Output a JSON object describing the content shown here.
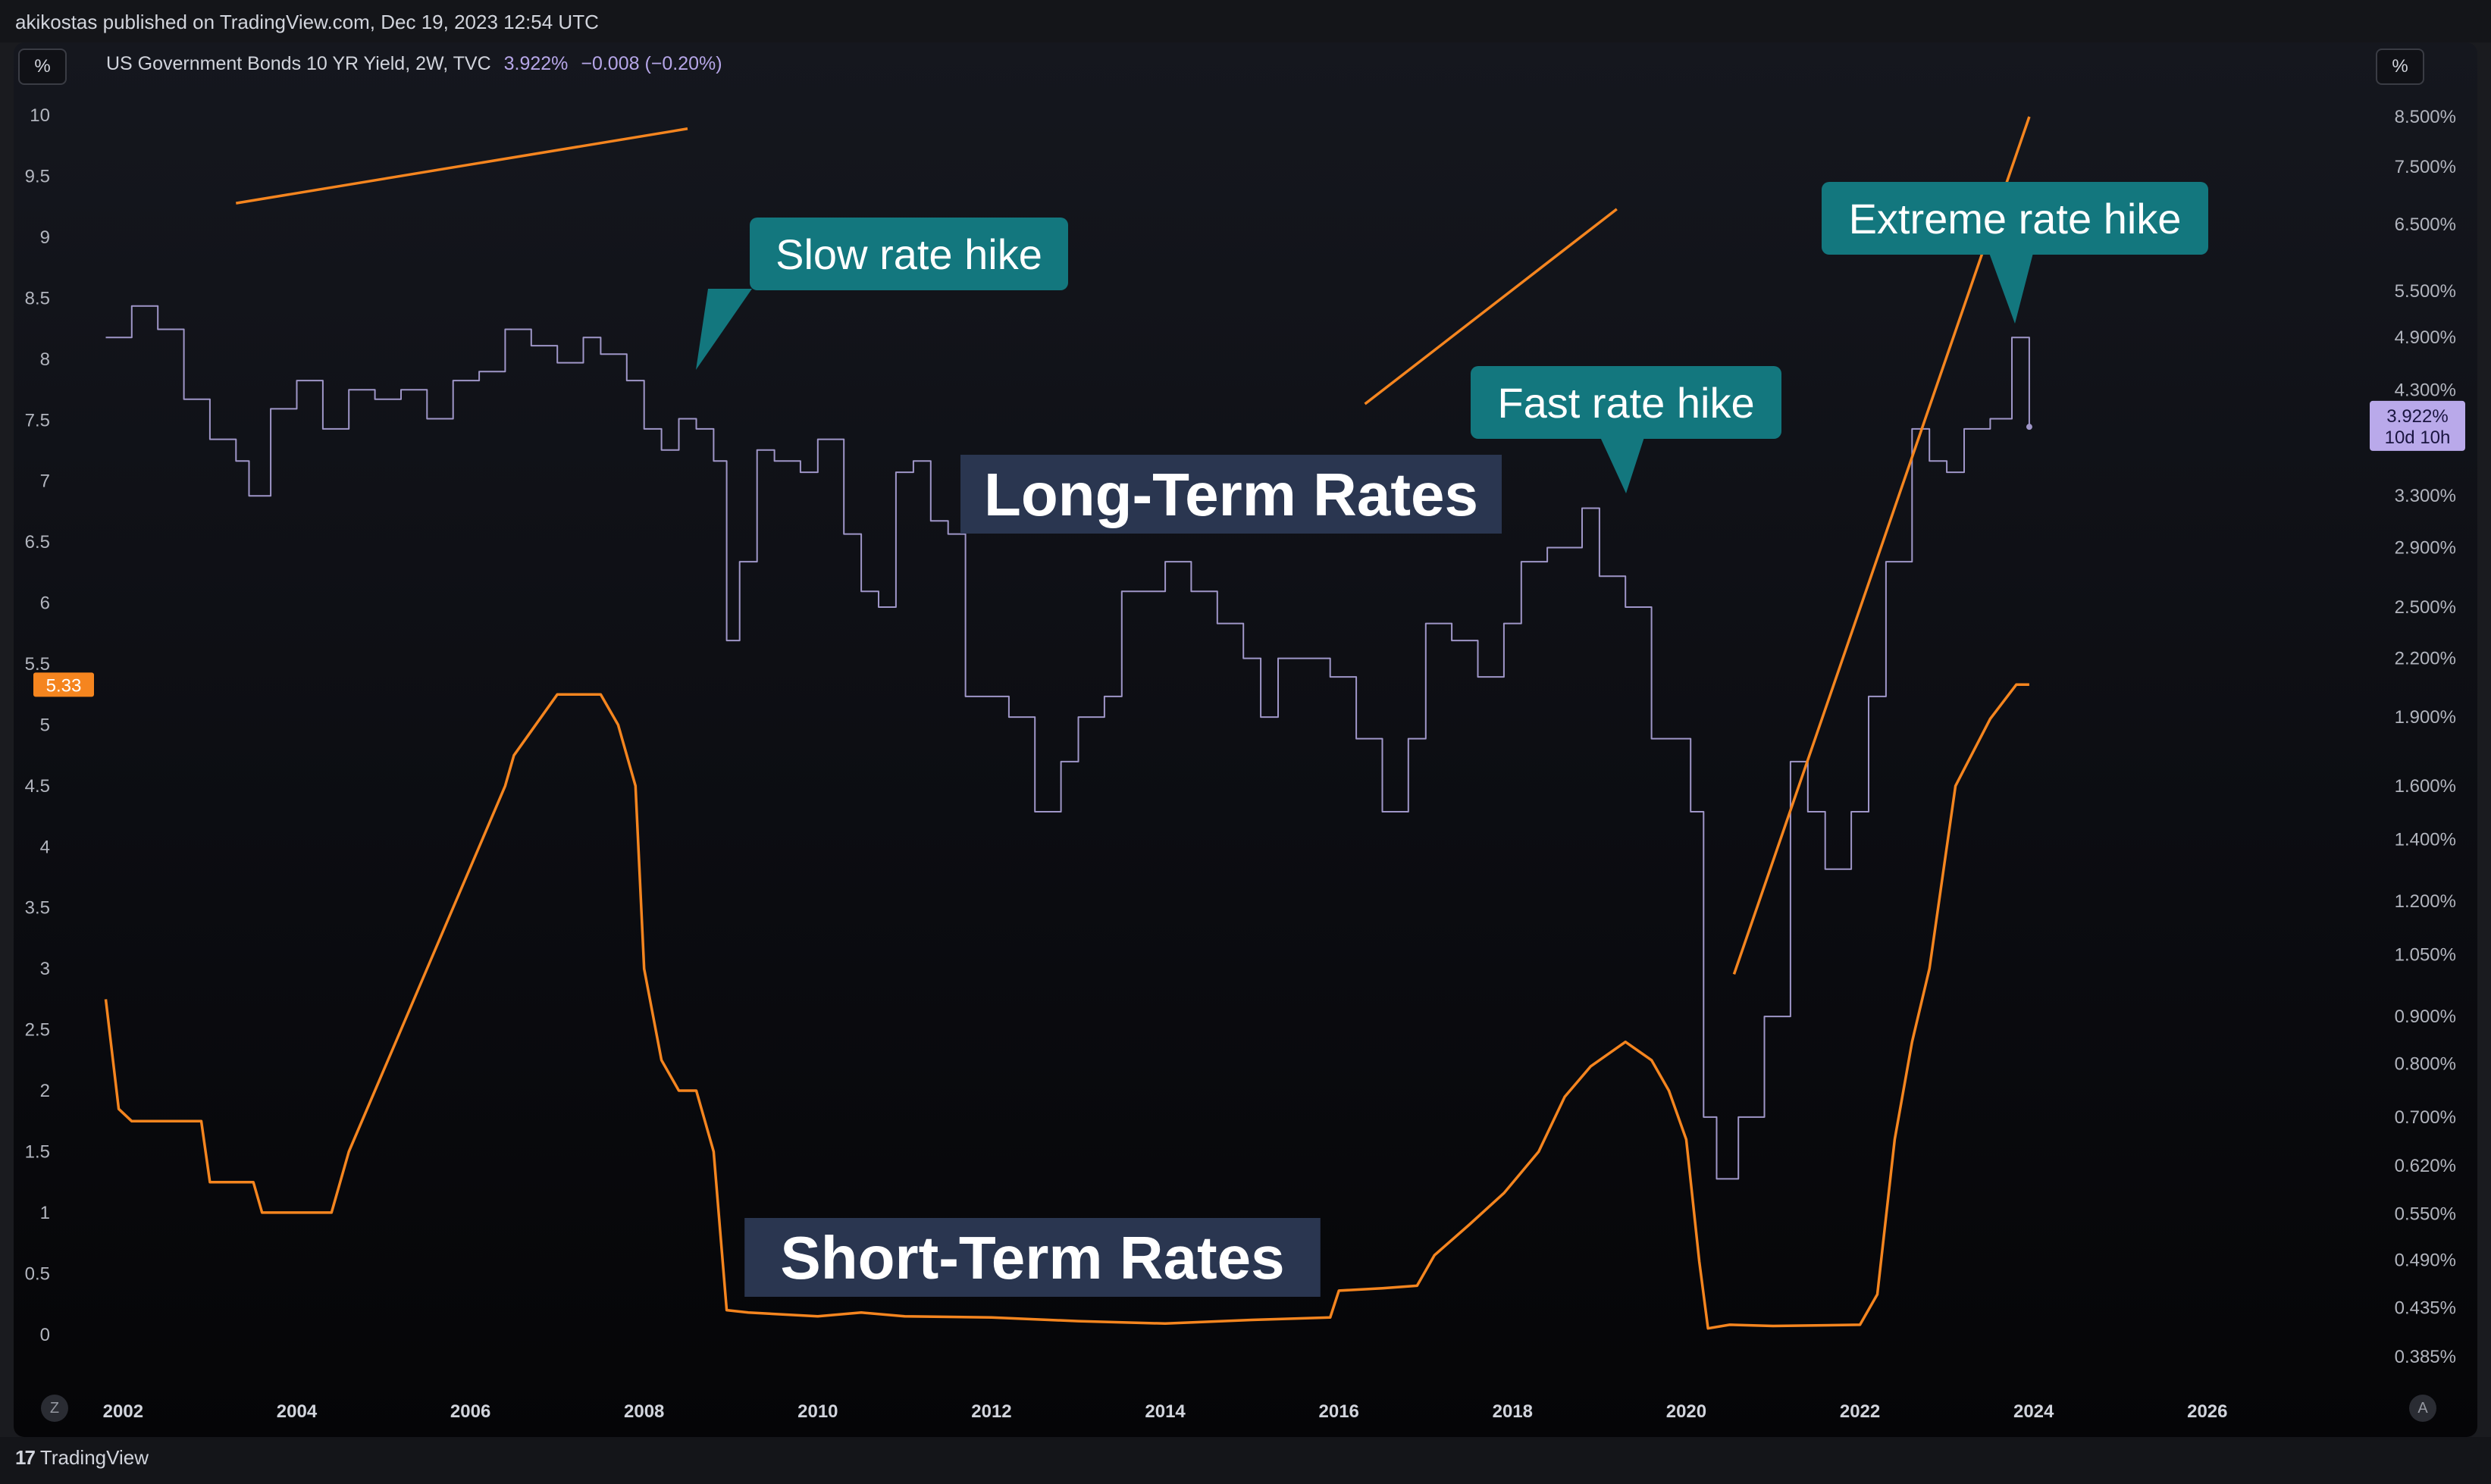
{
  "header": {
    "byline": "akikostas published on TradingView.com, Dec 19, 2023 12:54 UTC"
  },
  "legend": {
    "unit": "%",
    "symbol": "US Government Bonds 10 YR Yield, 2W, TVC",
    "last": "3.922%",
    "change": "−0.008 (−0.20%)"
  },
  "right_unit": "%",
  "footer": {
    "brand": "TradingView",
    "left_button": "Z",
    "right_button": "A"
  },
  "colors": {
    "long_term": "#9f96c8",
    "short_term": "#f5851f",
    "callout": "#13777e",
    "label_bg": "#2a3650",
    "price_tag": "#b9a9ea"
  },
  "chart_data": {
    "type": "line",
    "xlabel": "",
    "ylabel": "",
    "x_ticks": [
      "2002",
      "2004",
      "2006",
      "2008",
      "2010",
      "2012",
      "2014",
      "2016",
      "2018",
      "2020",
      "2022",
      "2024",
      "2026"
    ],
    "xlim": [
      2001.7,
      2027.8
    ],
    "left_axis": {
      "ticks": [
        "10",
        "9.5",
        "9",
        "8.5",
        "8",
        "7.5",
        "7",
        "6.5",
        "6",
        "5.5",
        "5",
        "4.5",
        "4",
        "3.5",
        "3",
        "2.5",
        "2",
        "1.5",
        "1",
        "0.5",
        "0"
      ],
      "ylim": [
        -0.25,
        10.1
      ]
    },
    "right_axis": {
      "scale": "log",
      "ticks": [
        "8.500%",
        "7.500%",
        "6.500%",
        "5.500%",
        "4.900%",
        "4.300%",
        "3.300%",
        "2.900%",
        "2.500%",
        "2.200%",
        "1.900%",
        "1.600%",
        "1.400%",
        "1.200%",
        "1.050%",
        "0.900%",
        "0.800%",
        "0.700%",
        "0.620%",
        "0.550%",
        "0.490%",
        "0.435%",
        "0.385%"
      ]
    },
    "series": [
      {
        "name": "US Government Bonds 10 YR Yield, 2W, TVC",
        "axis": "right",
        "x": [
          2001.8,
          2002.1,
          2002.4,
          2002.7,
          2003.0,
          2003.3,
          2003.45,
          2003.7,
          2004.0,
          2004.3,
          2004.6,
          2004.9,
          2005.2,
          2005.5,
          2005.8,
          2006.1,
          2006.4,
          2006.7,
          2007.0,
          2007.3,
          2007.5,
          2007.8,
          2008.0,
          2008.2,
          2008.4,
          2008.6,
          2008.8,
          2008.95,
          2009.1,
          2009.3,
          2009.5,
          2009.8,
          2010.0,
          2010.3,
          2010.5,
          2010.7,
          2010.9,
          2011.1,
          2011.3,
          2011.5,
          2011.7,
          2011.9,
          2012.2,
          2012.5,
          2012.8,
          2013.0,
          2013.3,
          2013.5,
          2013.7,
          2014.0,
          2014.3,
          2014.6,
          2014.9,
          2015.1,
          2015.3,
          2015.6,
          2015.9,
          2016.2,
          2016.5,
          2016.8,
          2017.0,
          2017.3,
          2017.6,
          2017.9,
          2018.1,
          2018.4,
          2018.8,
          2019.0,
          2019.3,
          2019.6,
          2019.9,
          2020.05,
          2020.2,
          2020.35,
          2020.6,
          2020.9,
          2021.2,
          2021.4,
          2021.6,
          2021.9,
          2022.1,
          2022.3,
          2022.6,
          2022.8,
          2023.0,
          2023.2,
          2023.5,
          2023.75,
          2023.95
        ],
        "y": [
          4.9,
          5.3,
          5.0,
          4.2,
          3.8,
          3.6,
          3.3,
          4.1,
          4.4,
          3.9,
          4.3,
          4.2,
          4.3,
          4.0,
          4.4,
          4.5,
          5.0,
          4.8,
          4.6,
          4.9,
          4.7,
          4.4,
          3.9,
          3.7,
          4.0,
          3.9,
          3.6,
          2.3,
          2.8,
          3.7,
          3.6,
          3.5,
          3.8,
          3.0,
          2.6,
          2.5,
          3.5,
          3.6,
          3.1,
          3.0,
          2.0,
          2.0,
          1.9,
          1.5,
          1.7,
          1.9,
          2.0,
          2.6,
          2.6,
          2.8,
          2.6,
          2.4,
          2.2,
          1.9,
          2.2,
          2.2,
          2.1,
          1.8,
          1.5,
          1.8,
          2.4,
          2.3,
          2.1,
          2.4,
          2.8,
          2.9,
          3.2,
          2.7,
          2.5,
          1.8,
          1.8,
          1.5,
          0.7,
          0.6,
          0.7,
          0.9,
          1.7,
          1.5,
          1.3,
          1.5,
          2.0,
          2.8,
          3.9,
          3.6,
          3.5,
          3.9,
          4.0,
          4.9,
          3.92
        ]
      },
      {
        "name": "Short-Term Rates",
        "axis": "left",
        "x": [
          2001.8,
          2001.95,
          2002.1,
          2002.5,
          2002.9,
          2003.0,
          2003.2,
          2003.5,
          2003.6,
          2004.0,
          2004.4,
          2004.6,
          2004.9,
          2005.2,
          2005.5,
          2005.8,
          2006.1,
          2006.4,
          2006.5,
          2007.0,
          2007.5,
          2007.7,
          2007.9,
          2008.0,
          2008.2,
          2008.4,
          2008.6,
          2008.8,
          2008.95,
          2009.2,
          2010.0,
          2010.5,
          2011.0,
          2012.0,
          2013.0,
          2014.0,
          2015.0,
          2015.9,
          2016.0,
          2016.5,
          2016.9,
          2017.1,
          2017.5,
          2017.9,
          2018.3,
          2018.6,
          2018.9,
          2019.3,
          2019.6,
          2019.8,
          2020.0,
          2020.15,
          2020.25,
          2020.5,
          2021.0,
          2022.0,
          2022.2,
          2022.4,
          2022.6,
          2022.8,
          2023.1,
          2023.5,
          2023.8,
          2023.95
        ],
        "y": [
          2.75,
          1.85,
          1.75,
          1.75,
          1.75,
          1.25,
          1.25,
          1.25,
          1.0,
          1.0,
          1.0,
          1.5,
          2.0,
          2.5,
          3.0,
          3.5,
          4.0,
          4.5,
          4.75,
          5.25,
          5.25,
          5.0,
          4.5,
          3.0,
          2.25,
          2.0,
          2.0,
          1.5,
          0.2,
          0.18,
          0.15,
          0.18,
          0.15,
          0.14,
          0.11,
          0.09,
          0.12,
          0.14,
          0.36,
          0.38,
          0.4,
          0.65,
          0.9,
          1.16,
          1.5,
          1.95,
          2.2,
          2.4,
          2.25,
          2.0,
          1.6,
          0.6,
          0.05,
          0.08,
          0.07,
          0.08,
          0.33,
          1.6,
          2.4,
          3.0,
          4.5,
          5.05,
          5.33,
          5.33
        ]
      }
    ],
    "trendlines": [
      {
        "x": [
          2003.3,
          2008.5
        ],
        "y": [
          6.85,
          8.25
        ]
      },
      {
        "x": [
          2016.3,
          2019.2
        ],
        "y": [
          4.15,
          6.75
        ]
      },
      {
        "x": [
          2020.55,
          2023.95
        ],
        "y": [
          1.0,
          8.5
        ]
      }
    ],
    "annotations": [
      {
        "text": "Slow rate hike",
        "kind": "callout"
      },
      {
        "text": "Fast rate hike",
        "kind": "callout"
      },
      {
        "text": "Extreme rate hike",
        "kind": "callout"
      },
      {
        "text": "Long-Term Rates",
        "kind": "label"
      },
      {
        "text": "Short-Term Rates",
        "kind": "label"
      }
    ],
    "price_labels": [
      {
        "axis": "right",
        "text": "3.922%",
        "sub": "10d 10h"
      },
      {
        "axis": "left",
        "text": "5.33"
      }
    ],
    "grid": false
  }
}
